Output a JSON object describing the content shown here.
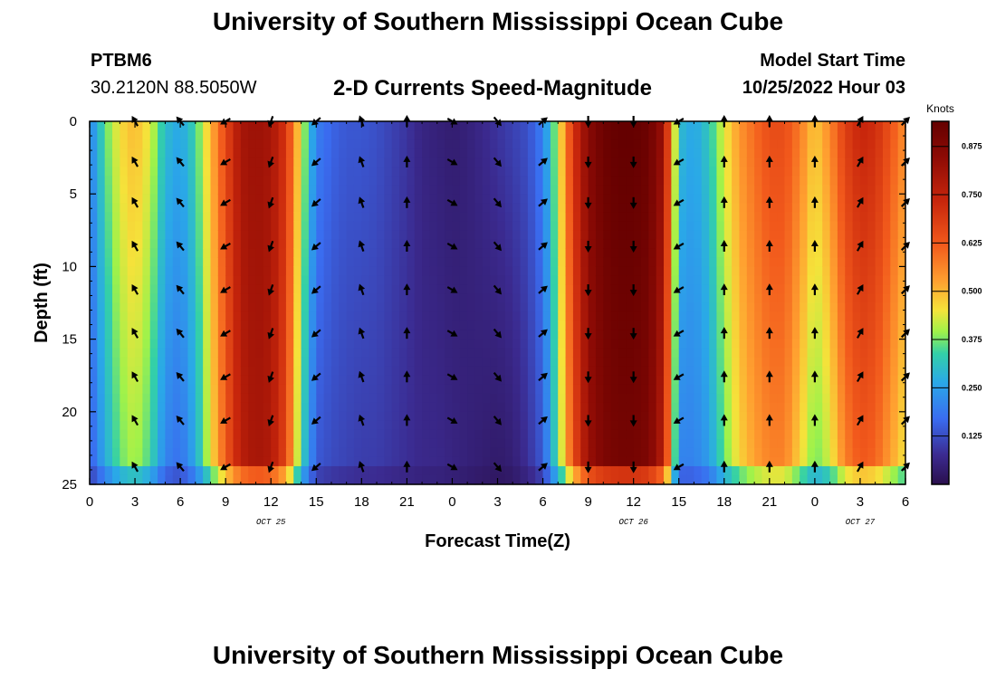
{
  "header": {
    "title": "University of Southern Mississippi Ocean Cube",
    "station": "PTBM6",
    "location": "30.2120N  88.5050W",
    "subtitle": "2-D Currents Speed-Magnitude",
    "model_label": "Model Start Time",
    "model_time": "10/25/2022 Hour 03"
  },
  "footer": {
    "title": "University of Southern Mississippi Ocean Cube"
  },
  "chart_data": {
    "type": "heatmap",
    "title": "2-D Currents Speed-Magnitude",
    "xlabel": "Forecast Time(Z)",
    "ylabel": "Depth (ft)",
    "x_tick_labels": [
      "0",
      "3",
      "6",
      "9",
      "12",
      "15",
      "18",
      "21",
      "0",
      "3",
      "6",
      "9",
      "12",
      "15",
      "18",
      "21",
      "0",
      "3",
      "6"
    ],
    "x_tick_hours": [
      0,
      3,
      6,
      9,
      12,
      15,
      18,
      21,
      24,
      27,
      30,
      33,
      36,
      39,
      42,
      45,
      48,
      51,
      54
    ],
    "date_labels": [
      {
        "text": "OCT 25",
        "hour": 12
      },
      {
        "text": "OCT 26",
        "hour": 36
      },
      {
        "text": "OCT 27",
        "hour": 51
      }
    ],
    "y_ticks": [
      0,
      5,
      10,
      15,
      20,
      25
    ],
    "ylim": [
      0,
      25
    ],
    "xlim": [
      0,
      54
    ],
    "colorbar": {
      "unit": "Knots",
      "ticks": [
        "0.125",
        "0.250",
        "0.375",
        "0.500",
        "0.625",
        "0.750",
        "0.875"
      ],
      "range": [
        0,
        0.94
      ]
    },
    "speed_profile": {
      "hours": [
        0,
        1,
        2,
        3,
        4,
        5,
        6,
        7,
        8,
        9,
        10,
        11,
        12,
        13,
        14,
        15,
        16,
        17,
        18,
        19,
        20,
        21,
        22,
        23,
        24,
        25,
        26,
        27,
        28,
        29,
        30,
        31,
        32,
        33,
        34,
        35,
        36,
        37,
        38,
        39,
        40,
        41,
        42,
        43,
        44,
        45,
        46,
        47,
        48,
        49,
        50,
        51,
        52,
        53,
        54
      ],
      "surface_knots": [
        0.2,
        0.36,
        0.46,
        0.5,
        0.44,
        0.3,
        0.26,
        0.34,
        0.5,
        0.66,
        0.8,
        0.82,
        0.8,
        0.7,
        0.44,
        0.2,
        0.16,
        0.14,
        0.14,
        0.13,
        0.11,
        0.09,
        0.06,
        0.05,
        0.04,
        0.05,
        0.07,
        0.09,
        0.11,
        0.13,
        0.2,
        0.42,
        0.7,
        0.86,
        0.92,
        0.94,
        0.94,
        0.92,
        0.82,
        0.3,
        0.26,
        0.32,
        0.44,
        0.54,
        0.6,
        0.65,
        0.65,
        0.58,
        0.48,
        0.56,
        0.68,
        0.74,
        0.72,
        0.64,
        0.55
      ],
      "deep_knots": [
        0.14,
        0.26,
        0.36,
        0.4,
        0.34,
        0.2,
        0.17,
        0.26,
        0.44,
        0.62,
        0.76,
        0.8,
        0.78,
        0.66,
        0.34,
        0.14,
        0.12,
        0.11,
        0.1,
        0.1,
        0.09,
        0.08,
        0.07,
        0.07,
        0.06,
        0.05,
        0.04,
        0.03,
        0.04,
        0.08,
        0.14,
        0.36,
        0.64,
        0.82,
        0.88,
        0.9,
        0.9,
        0.88,
        0.76,
        0.2,
        0.2,
        0.24,
        0.36,
        0.46,
        0.52,
        0.56,
        0.56,
        0.46,
        0.36,
        0.42,
        0.56,
        0.62,
        0.6,
        0.52,
        0.44
      ]
    },
    "vector_depths_ft": [
      0,
      2.8,
      5.6,
      8.6,
      11.6,
      14.6,
      17.6,
      20.6,
      23.8
    ],
    "vector_hours": [
      3,
      6,
      9,
      12,
      15,
      18,
      21,
      24,
      27,
      30,
      33,
      36,
      39,
      42,
      45,
      48,
      51,
      54
    ],
    "vector_directions_deg": [
      -30,
      -40,
      240,
      200,
      230,
      -20,
      0,
      120,
      140,
      50,
      180,
      180,
      240,
      0,
      0,
      0,
      30,
      45
    ]
  }
}
